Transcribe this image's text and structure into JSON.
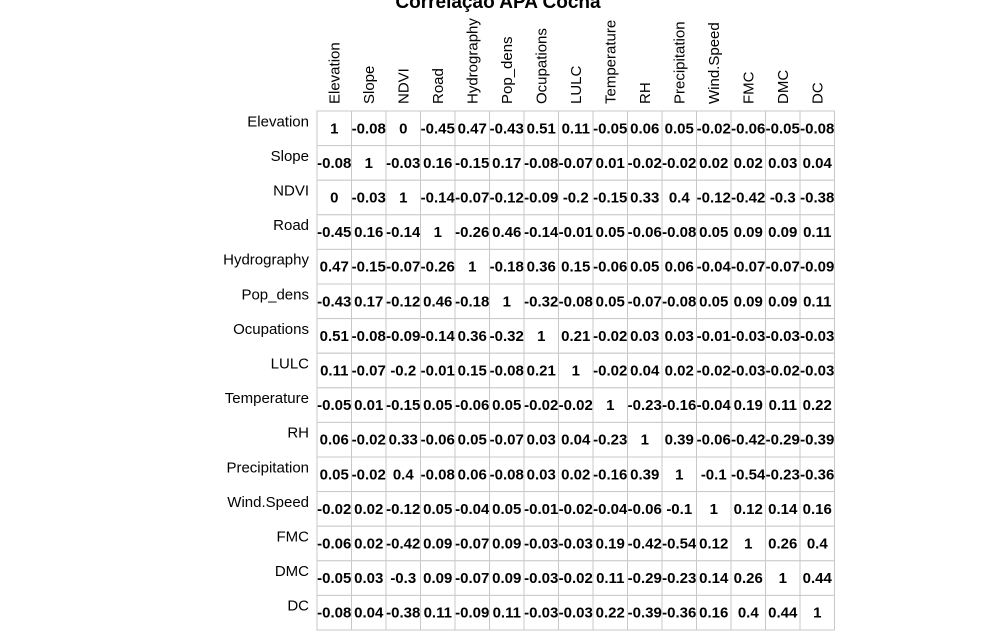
{
  "chart_data": {
    "type": "heatmap",
    "title": "Correlação APA Cocha",
    "variables": [
      "Elevation",
      "Slope",
      "NDVI",
      "Road",
      "Hydrography",
      "Pop_dens",
      "Ocupations",
      "LULC",
      "Temperature",
      "RH",
      "Precipitation",
      "Wind.Speed",
      "FMC",
      "DMC",
      "DC"
    ],
    "cell_labels": [
      [
        "1",
        "-0.08",
        "0",
        "-0.45",
        "0.47",
        "-0.43",
        "0.51",
        "0.11",
        "-0.05",
        "0.06",
        "0.05",
        "-0.02",
        "-0.06",
        "-0.05",
        "-0.08"
      ],
      [
        "-0.08",
        "1",
        "-0.03",
        "0.16",
        "-0.15",
        "0.17",
        "-0.08",
        "-0.07",
        "0.01",
        "-0.02",
        "-0.02",
        "0.02",
        "0.02",
        "0.03",
        "0.04"
      ],
      [
        "0",
        "-0.03",
        "1",
        "-0.14",
        "-0.07",
        "-0.12",
        "-0.09",
        "-0.2",
        "-0.15",
        "0.33",
        "0.4",
        "-0.12",
        "-0.42",
        "-0.3",
        "-0.38"
      ],
      [
        "-0.45",
        "0.16",
        "-0.14",
        "1",
        "-0.26",
        "0.46",
        "-0.14",
        "-0.01",
        "0.05",
        "-0.06",
        "-0.08",
        "0.05",
        "0.09",
        "0.09",
        "0.11"
      ],
      [
        "0.47",
        "-0.15",
        "-0.07",
        "-0.26",
        "1",
        "-0.18",
        "0.36",
        "0.15",
        "-0.06",
        "0.05",
        "0.06",
        "-0.04",
        "-0.07",
        "-0.07",
        "-0.09"
      ],
      [
        "-0.43",
        "0.17",
        "-0.12",
        "0.46",
        "-0.18",
        "1",
        "-0.32",
        "-0.08",
        "0.05",
        "-0.07",
        "-0.08",
        "0.05",
        "0.09",
        "0.09",
        "0.11"
      ],
      [
        "0.51",
        "-0.08",
        "-0.09",
        "-0.14",
        "0.36",
        "-0.32",
        "1",
        "0.21",
        "-0.02",
        "0.03",
        "0.03",
        "-0.01",
        "-0.03",
        "-0.03",
        "-0.03"
      ],
      [
        "0.11",
        "-0.07",
        "-0.2",
        "-0.01",
        "0.15",
        "-0.08",
        "0.21",
        "1",
        "-0.02",
        "0.04",
        "0.02",
        "-0.02",
        "-0.03",
        "-0.02",
        "-0.03"
      ],
      [
        "-0.05",
        "0.01",
        "-0.15",
        "0.05",
        "-0.06",
        "0.05",
        "-0.02",
        "-0.02",
        "1",
        "-0.23",
        "-0.16",
        "-0.04",
        "0.19",
        "0.11",
        "0.22"
      ],
      [
        "0.06",
        "-0.02",
        "0.33",
        "-0.06",
        "0.05",
        "-0.07",
        "0.03",
        "0.04",
        "-0.23",
        "1",
        "0.39",
        "-0.06",
        "-0.42",
        "-0.29",
        "-0.39"
      ],
      [
        "0.05",
        "-0.02",
        "0.4",
        "-0.08",
        "0.06",
        "-0.08",
        "0.03",
        "0.02",
        "-0.16",
        "0.39",
        "1",
        "-0.1",
        "-0.54",
        "-0.23",
        "-0.36"
      ],
      [
        "-0.02",
        "0.02",
        "-0.12",
        "0.05",
        "-0.04",
        "0.05",
        "-0.01",
        "-0.02",
        "-0.04",
        "-0.06",
        "-0.1",
        "1",
        "0.12",
        "0.14",
        "0.16"
      ],
      [
        "-0.06",
        "0.02",
        "-0.42",
        "0.09",
        "-0.07",
        "0.09",
        "-0.03",
        "-0.03",
        "0.19",
        "-0.42",
        "-0.54",
        "0.12",
        "1",
        "0.26",
        "0.4"
      ],
      [
        "-0.05",
        "0.03",
        "-0.3",
        "0.09",
        "-0.07",
        "0.09",
        "-0.03",
        "-0.02",
        "0.11",
        "-0.29",
        "-0.23",
        "0.14",
        "0.26",
        "1",
        "0.44"
      ],
      [
        "-0.08",
        "0.04",
        "-0.38",
        "0.11",
        "-0.09",
        "0.11",
        "-0.03",
        "-0.03",
        "0.22",
        "-0.39",
        "-0.36",
        "0.16",
        "0.4",
        "0.44",
        "1"
      ]
    ],
    "grid": true,
    "cell_fill": "#ffffff",
    "grid_color": "#c8c8c8",
    "text_color": "#000000"
  }
}
